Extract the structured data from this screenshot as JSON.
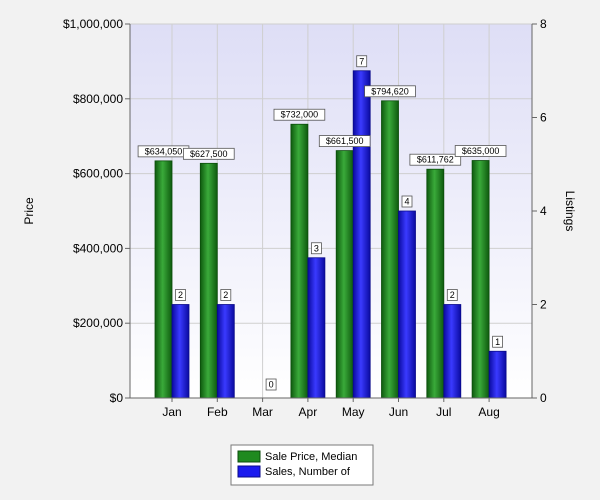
{
  "chart_data": {
    "type": "bar",
    "title": "",
    "categories": [
      "Jan",
      "Feb",
      "Mar",
      "Apr",
      "May",
      "Jun",
      "Jul",
      "Aug"
    ],
    "series": [
      {
        "name": "Sale Price, Median",
        "axis": "left",
        "color": "#1f8a1f",
        "values": [
          634050,
          627500,
          null,
          732000,
          661500,
          794620,
          611762,
          635000
        ],
        "labels": [
          "$634,050",
          "$627,500",
          "",
          "$732,000",
          "$661,500",
          "$794,620",
          "$611,762",
          "$635,000"
        ]
      },
      {
        "name": "Sales, Number of",
        "axis": "right",
        "color": "#1a1aee",
        "values": [
          2,
          2,
          0,
          3,
          7,
          4,
          2,
          1
        ],
        "labels": [
          "2",
          "2",
          "0",
          "3",
          "7",
          "4",
          "2",
          "1"
        ]
      }
    ],
    "y_left": {
      "label": "Price",
      "ylim": [
        0,
        1000000
      ],
      "ticks": [
        0,
        200000,
        400000,
        600000,
        800000,
        1000000
      ],
      "tick_labels": [
        "$0",
        "$200,000",
        "$400,000",
        "$600,000",
        "$800,000",
        "$1,000,000"
      ]
    },
    "y_right": {
      "label": "Listings",
      "ylim": [
        0,
        8
      ],
      "ticks": [
        0,
        2,
        4,
        6,
        8
      ],
      "tick_labels": [
        "0",
        "2",
        "4",
        "6",
        "8"
      ]
    },
    "grid": true,
    "legend_position": "bottom-center"
  }
}
